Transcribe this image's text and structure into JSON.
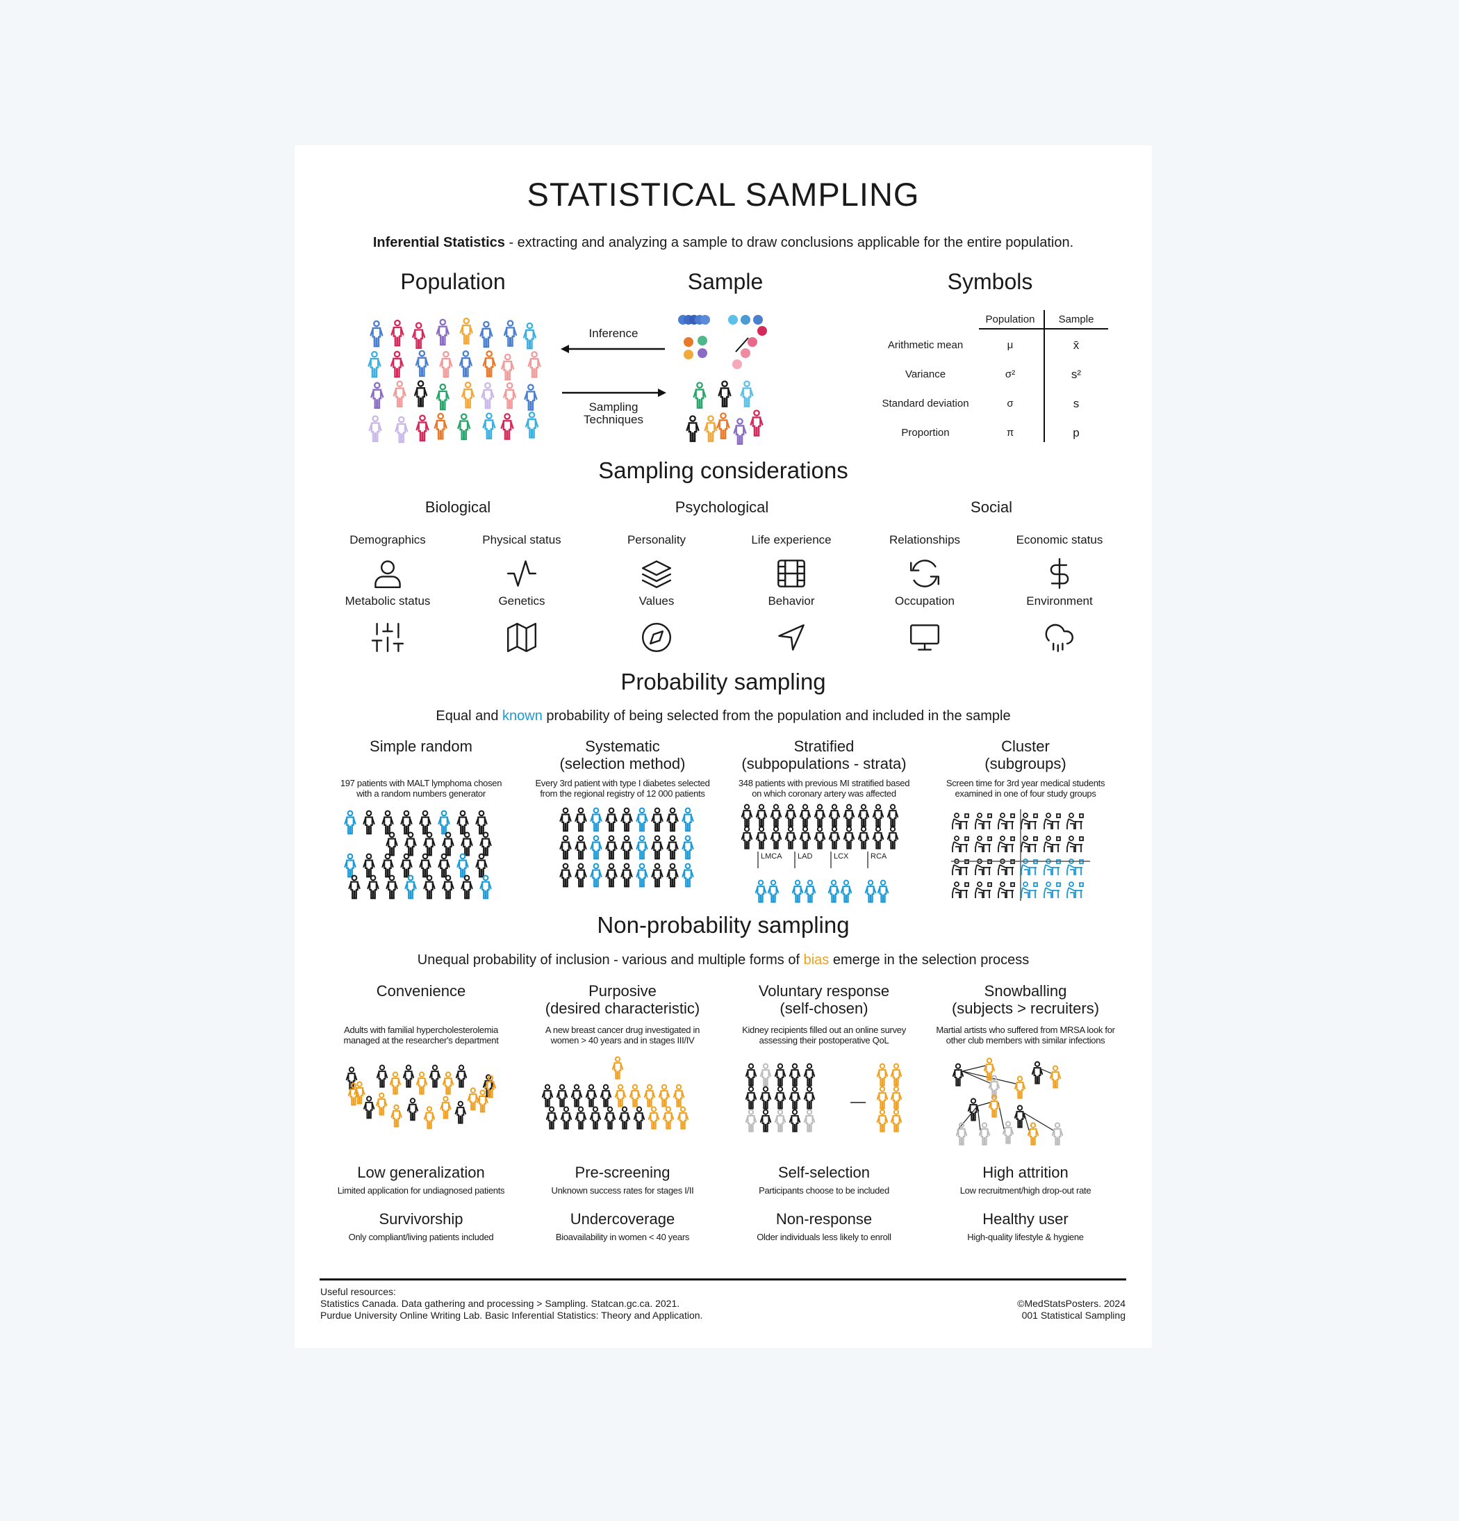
{
  "title": "STATISTICAL SAMPLING",
  "intro": {
    "bold": "Inferential Statistics",
    "rest": " - extracting and analyzing a sample to draw conclusions applicable for the entire population."
  },
  "overview": {
    "population_heading": "Population",
    "sample_heading": "Sample",
    "symbols_heading": "Symbols",
    "inference_label": "Inference",
    "sampling_label_1": "Sampling",
    "sampling_label_2": "Techniques",
    "population_colors": [
      "#1a1a1a",
      "#4a7fd0",
      "#f29b9b",
      "#e8792a",
      "#f0a93a",
      "#d42a5b",
      "#2aa56b",
      "#8a6cc4",
      "#c9b8e8",
      "#3bb0e0"
    ]
  },
  "symbols": {
    "columns": [
      "Population",
      "Sample"
    ],
    "rows": [
      {
        "label": "Arithmetic mean",
        "population": "μ",
        "sample": "x̄"
      },
      {
        "label": "Variance",
        "population": "σ²",
        "sample": "s²"
      },
      {
        "label": "Standard deviation",
        "population": "σ",
        "sample": "s"
      },
      {
        "label": "Proportion",
        "population": "π",
        "sample": "p"
      }
    ]
  },
  "considerations": {
    "heading": "Sampling considerations",
    "groups": [
      "Biological",
      "Psychological",
      "Social"
    ],
    "items": [
      {
        "label": "Demographics",
        "icon": "user-icon"
      },
      {
        "label": "Physical status",
        "icon": "activity-icon"
      },
      {
        "label": "Personality",
        "icon": "layers-icon"
      },
      {
        "label": "Life experience",
        "icon": "film-icon"
      },
      {
        "label": "Relationships",
        "icon": "refresh-icon"
      },
      {
        "label": "Economic status",
        "icon": "dollar-icon"
      },
      {
        "label": "Metabolic status",
        "icon": "sliders-icon"
      },
      {
        "label": "Genetics",
        "icon": "map-icon"
      },
      {
        "label": "Values",
        "icon": "compass-icon"
      },
      {
        "label": "Behavior",
        "icon": "navigation-icon"
      },
      {
        "label": "Occupation",
        "icon": "monitor-icon"
      },
      {
        "label": "Environment",
        "icon": "cloud-drizzle-icon"
      }
    ]
  },
  "probability": {
    "heading": "Probability sampling",
    "sub_pre": "Equal and ",
    "sub_highlight": "known",
    "sub_post": " probability of being selected from the population and included in the sample",
    "highlight_color": "#1a9ad6",
    "methods": [
      {
        "title1": "Simple random",
        "title2": "",
        "desc1": "197 patients with MALT lymphoma chosen",
        "desc2": "with a random numbers generator"
      },
      {
        "title1": "Systematic",
        "title2": "(selection method)",
        "desc1": "Every 3rd patient with type I diabetes selected",
        "desc2": "from the regional registry of 12 000 patients"
      },
      {
        "title1": "Stratified",
        "title2": "(subpopulations - strata)",
        "desc1": "348 patients with previous MI stratified based",
        "desc2": "on which coronary artery was affected"
      },
      {
        "title1": "Cluster",
        "title2": "(subgroups)",
        "desc1": "Screen time for 3rd year medical students",
        "desc2": "examined in one of four study groups"
      }
    ],
    "strata": [
      "LMCA",
      "LAD",
      "LCX",
      "RCA"
    ]
  },
  "nonprobability": {
    "heading": "Non-probability sampling",
    "sub_pre": "Unequal probability of inclusion - various and multiple forms of ",
    "sub_highlight": "bias",
    "sub_post": " emerge in the selection process",
    "highlight_color": "#f0a020",
    "methods": [
      {
        "title1": "Convenience",
        "title2": "",
        "desc1": "Adults with familial hypercholesterolemia",
        "desc2": "managed at the researcher's department"
      },
      {
        "title1": "Purposive",
        "title2": "(desired characteristic)",
        "desc1": "A new breast cancer drug investigated in",
        "desc2": "women > 40 years and in stages III/IV"
      },
      {
        "title1": "Voluntary response",
        "title2": "(self-chosen)",
        "desc1": "Kidney recipients filled out an online survey",
        "desc2": "assessing their postoperative QoL"
      },
      {
        "title1": "Snowballing",
        "title2": "(subjects > recruiters)",
        "desc1": "Martial artists who suffered from MRSA look for",
        "desc2": "other club members with similar infections"
      }
    ],
    "biases": [
      {
        "title": "Low generalization",
        "desc": "Limited application for undiagnosed patients"
      },
      {
        "title": "Pre-screening",
        "desc": "Unknown success rates for stages I/II"
      },
      {
        "title": "Self-selection",
        "desc": "Participants choose to be included"
      },
      {
        "title": "High attrition",
        "desc": "Low recruitment/high drop-out rate"
      },
      {
        "title": "Survivorship",
        "desc": "Only compliant/living patients included"
      },
      {
        "title": "Undercoverage",
        "desc": "Bioavailability in women < 40 years"
      },
      {
        "title": "Non-response",
        "desc": "Older individuals less likely to enroll"
      },
      {
        "title": "Healthy user",
        "desc": "High-quality lifestyle & hygiene"
      }
    ]
  },
  "footer": {
    "resources": [
      "Useful resources:",
      "Statistics Canada. Data gathering and processing > Sampling. Statcan.gc.ca. 2021.",
      "Purdue University Online Writing Lab. Basic Inferential Statistics: Theory and Application."
    ],
    "copyright": "©MedStatsPosters. 2024",
    "code": "001 Statistical Sampling"
  }
}
